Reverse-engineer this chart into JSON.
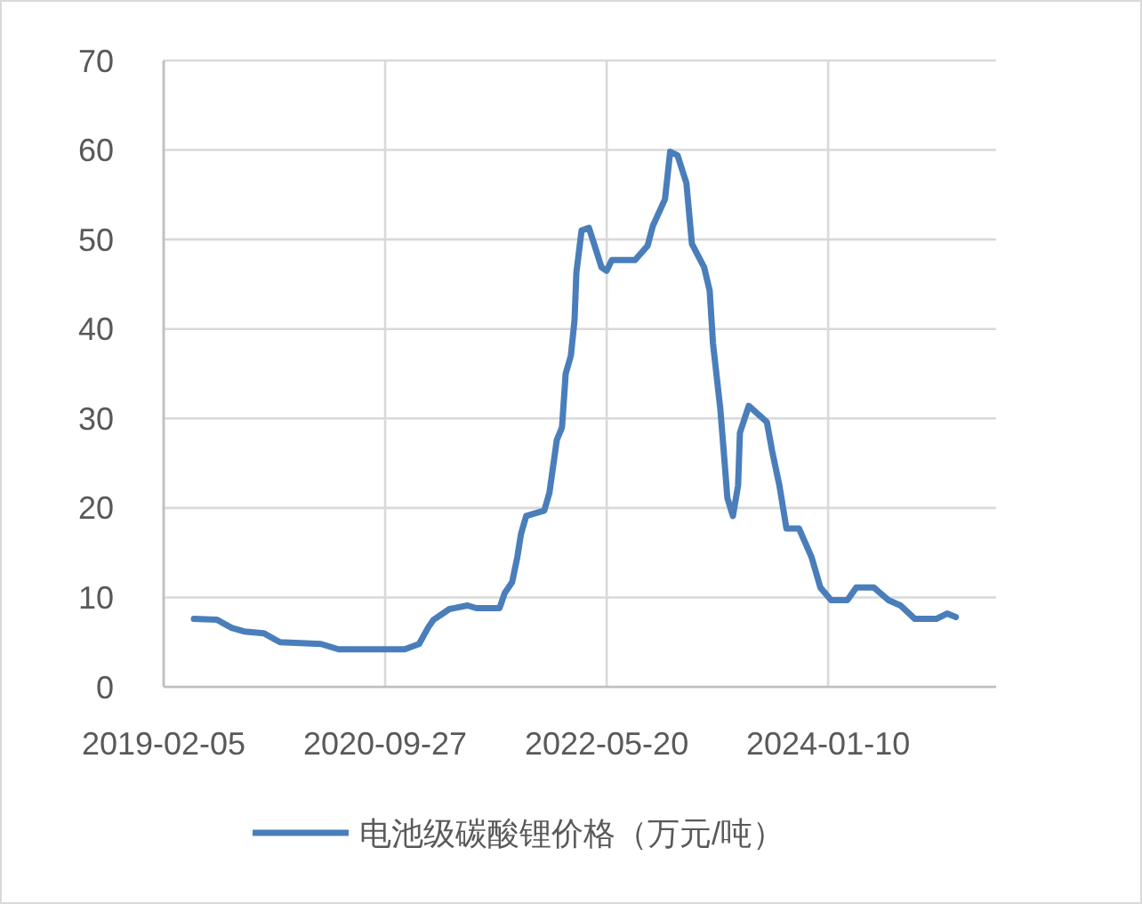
{
  "chart_data": {
    "type": "line",
    "x": [
      "2019-04-28",
      "2019-06-30",
      "2019-08-08",
      "2019-09-11",
      "2019-11-03",
      "2019-12-17",
      "2020-04-06",
      "2020-05-24",
      "2020-11-19",
      "2020-12-28",
      "2021-01-21",
      "2021-02-05",
      "2021-03-20",
      "2021-05-08",
      "2021-06-01",
      "2021-08-03",
      "2021-08-17",
      "2021-09-06",
      "2021-09-20",
      "2021-09-30",
      "2021-10-14",
      "2021-12-02",
      "2021-12-16",
      "2022-01-05",
      "2022-01-19",
      "2022-01-29",
      "2022-02-12",
      "2022-02-22",
      "2022-02-27",
      "2022-03-13",
      "2022-04-02",
      "2022-04-16",
      "2022-05-06",
      "2022-05-20",
      "2022-06-03",
      "2022-08-05",
      "2022-09-08",
      "2022-09-22",
      "2022-10-25",
      "2022-11-08",
      "2022-11-28",
      "2022-12-22",
      "2023-01-06",
      "2023-02-08",
      "2023-02-23",
      "2023-03-04",
      "2023-03-24",
      "2023-04-02",
      "2023-04-12",
      "2023-04-27",
      "2023-05-11",
      "2023-05-16",
      "2023-06-09",
      "2023-07-28",
      "2023-08-11",
      "2023-08-31",
      "2023-09-19",
      "2023-09-29",
      "2023-10-23",
      "2023-11-26",
      "2023-12-20",
      "2024-01-18",
      "2024-03-02",
      "2024-03-26",
      "2024-05-13",
      "2024-06-21",
      "2024-07-24",
      "2024-09-01",
      "2024-10-29",
      "2024-11-27",
      "2024-12-21"
    ],
    "series": [
      {
        "name": "电池级碳酸锂价格（万元/吨）",
        "color": "#4a7ebb",
        "values": [
          7.6,
          7.5,
          6.6,
          6.2,
          6.0,
          5.0,
          4.8,
          4.2,
          4.2,
          4.8,
          6.6,
          7.5,
          8.7,
          9.1,
          8.8,
          8.8,
          10.5,
          11.7,
          14.5,
          17.1,
          19.1,
          19.7,
          21.7,
          27.6,
          29,
          35,
          37,
          41,
          46.3,
          51,
          51.3,
          49.5,
          46.9,
          46.5,
          47.7,
          47.7,
          49.3,
          51.5,
          54.5,
          59.8,
          59.4,
          56.3,
          49.5,
          46.9,
          44.3,
          38.4,
          31,
          26.4,
          21.1,
          19.1,
          22.5,
          28.4,
          31.4,
          29.6,
          26.4,
          22.5,
          17.7,
          17.7,
          17.7,
          14.5,
          11.1,
          9.7,
          9.7,
          11.1,
          11.1,
          9.7,
          9.1,
          7.6,
          7.6,
          8.2,
          7.8
        ]
      }
    ],
    "xlim": [
      "2019-02-05",
      "2025-04-09"
    ],
    "xticks": [
      {
        "value": "2019-02-05",
        "label": "2019-02-05"
      },
      {
        "value": "2020-09-27",
        "label": "2020-09-27"
      },
      {
        "value": "2022-05-20",
        "label": "2022-05-20"
      },
      {
        "value": "2024-01-10",
        "label": "2024-01-10"
      }
    ],
    "ylim": [
      0,
      70
    ],
    "yticks": [
      0,
      10,
      20,
      30,
      40,
      50,
      60,
      70
    ],
    "grid": true,
    "legend": "bottom",
    "marker": "none",
    "line_style": "solid"
  }
}
